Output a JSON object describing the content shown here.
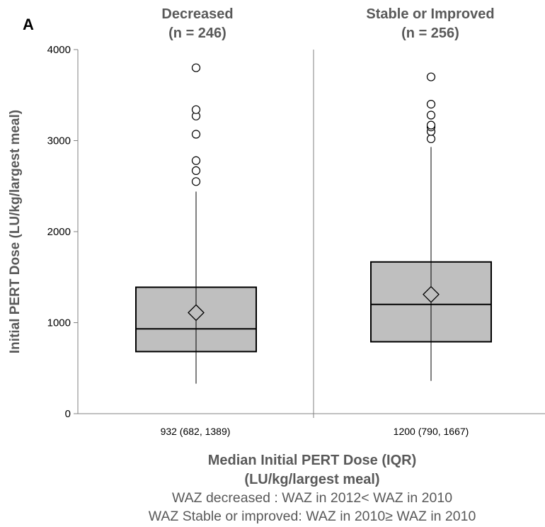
{
  "chart_data": {
    "type": "box",
    "panel_label": "A",
    "ylabel": "Initial PERT Dose (LU/kg/largest meal)",
    "xlabel_line1": "Median Initial PERT Dose (IQR)",
    "xlabel_line2": "(LU/kg/largest meal)",
    "ylim": [
      0,
      4000
    ],
    "yticks": [
      0,
      1000,
      2000,
      3000,
      4000
    ],
    "grid": false,
    "colors": {
      "box_fill": "#bfbfbf",
      "stroke": "#000000",
      "text_gray": "#595959",
      "divider": "#808080"
    },
    "groups": [
      {
        "name_line1": "Decreased",
        "name_line2": "(n = 246)",
        "summary": "932 (682, 1389)",
        "whisker_low": 330,
        "q1": 682,
        "median": 932,
        "q3": 1389,
        "whisker_high": 2440,
        "mean": 1110,
        "outliers": [
          2550,
          2670,
          2780,
          3070,
          3270,
          3340,
          3800
        ]
      },
      {
        "name_line1": "Stable or Improved",
        "name_line2": "(n = 256)",
        "summary": "1200 (790, 1667)",
        "whisker_low": 360,
        "q1": 790,
        "median": 1200,
        "q3": 1667,
        "whisker_high": 2930,
        "mean": 1310,
        "outliers": [
          3020,
          3100,
          3150,
          3170,
          3280,
          3400,
          3700
        ]
      }
    ]
  },
  "footnotes": [
    "WAZ decreased : WAZ in 2012< WAZ in 2010",
    "WAZ Stable or improved: WAZ in 2010≥ WAZ in 2010"
  ]
}
